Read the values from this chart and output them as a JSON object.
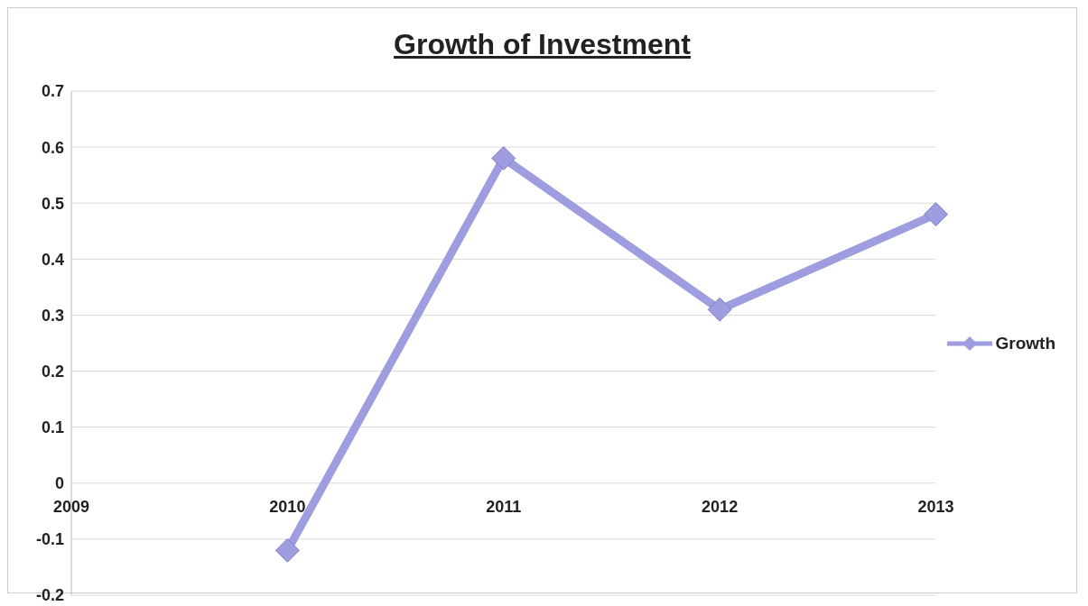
{
  "chart_data": {
    "type": "line",
    "title": "Growth of Investment",
    "categories": [
      "2009",
      "2010",
      "2011",
      "2012",
      "2013"
    ],
    "series": [
      {
        "name": "Growth",
        "color": "#9d9ddf",
        "values": [
          null,
          -0.12,
          0.58,
          0.31,
          0.48
        ]
      }
    ],
    "ylim": [
      -0.2,
      0.7
    ],
    "yticks": [
      -0.2,
      -0.1,
      0,
      0.1,
      0.2,
      0.3,
      0.4,
      0.5,
      0.6,
      0.7
    ],
    "grid": "y",
    "legend": "right",
    "marker": "diamond",
    "line_style": "solid"
  }
}
